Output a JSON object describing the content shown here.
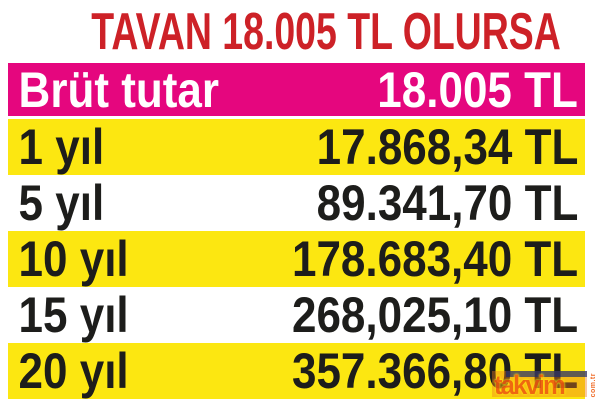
{
  "title": "TAVAN 18.005 TL OLURSA",
  "table": {
    "header": {
      "label": "Brüt tutar",
      "value": "18.005 TL"
    },
    "rows": [
      {
        "label": "1 yıl",
        "value": "17.868,34 TL",
        "bg": "yellow"
      },
      {
        "label": "5 yıl",
        "value": "89.341,70 TL",
        "bg": "white"
      },
      {
        "label": "10 yıl",
        "value": "178.683,40 TL",
        "bg": "yellow"
      },
      {
        "label": "15 yıl",
        "value": "268,025,10 TL",
        "bg": "white"
      },
      {
        "label": "20 yıl",
        "value": "357.366,80 TL",
        "bg": "yellow"
      }
    ]
  },
  "watermark": {
    "text": "takvim",
    "suffix": "com.tr"
  },
  "colors": {
    "title_red": "#cd2127",
    "header_pink": "#e5067e",
    "row_yellow": "#fce711",
    "text_dark": "#1d1d1b",
    "watermark_orange": "#ee5b10",
    "watermark_navy": "#26316d",
    "watermark_band": "rgba(237,125,28,0.45)"
  },
  "chart_data": {
    "type": "table",
    "title": "TAVAN 18.005 TL OLURSA",
    "rows": [
      [
        "Brüt tutar",
        "18.005 TL"
      ],
      [
        "1 yıl",
        "17.868,34 TL"
      ],
      [
        "5 yıl",
        "89.341,70 TL"
      ],
      [
        "10 yıl",
        "178.683,40 TL"
      ],
      [
        "15 yıl",
        "268,025,10 TL"
      ],
      [
        "20 yıl",
        "357.366,80 TL"
      ]
    ],
    "layout_hints": {
      "header_row_bg": "magenta",
      "alternating_row_bgs": [
        "yellow",
        "white"
      ],
      "values_right_aligned": true
    }
  }
}
